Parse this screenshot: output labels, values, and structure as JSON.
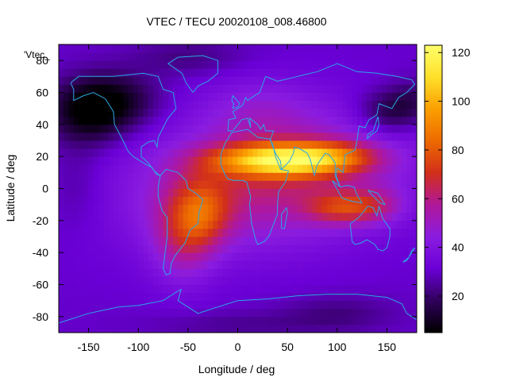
{
  "chart_data": {
    "type": "heatmap",
    "title": "VTEC / TECU 20020108_008.46800",
    "xlabel": "Longitude / deg",
    "ylabel": "Latitude / deg",
    "series_key": "'Vtec_",
    "xlim": [
      -180,
      180
    ],
    "ylim": [
      -90,
      90
    ],
    "xticks": [
      -150,
      -100,
      -50,
      0,
      50,
      100,
      150
    ],
    "yticks": [
      -80,
      -60,
      -40,
      -20,
      0,
      20,
      40,
      60,
      80
    ],
    "colorbar": {
      "min": 5,
      "max": 123,
      "ticks": [
        20,
        40,
        60,
        80,
        100,
        120
      ],
      "colors": [
        "#000000",
        "#30005a",
        "#6a00d6",
        "#8a1ce0",
        "#b0189a",
        "#d22f1a",
        "#ed6a00",
        "#fb9f00",
        "#ffe02a",
        "#ffff6a"
      ]
    },
    "field": {
      "background": 32,
      "features": [
        {
          "name": "equatorial-anomaly-band",
          "lon": 30,
          "lat": 5,
          "peak": 62
        },
        {
          "name": "north-crest",
          "lon": 35,
          "lat": 20,
          "peak": 120
        },
        {
          "name": "south-crest-america",
          "lon": -55,
          "lat": -25,
          "peak": 68
        },
        {
          "name": "south-crest-indian",
          "lon": 100,
          "lat": -12,
          "peak": 72
        },
        {
          "name": "polar-trough-north",
          "lon": -150,
          "lat": 45,
          "peak": 8
        },
        {
          "name": "polar-trough-pacific",
          "lon": 145,
          "lat": 48,
          "peak": 10
        }
      ]
    }
  }
}
